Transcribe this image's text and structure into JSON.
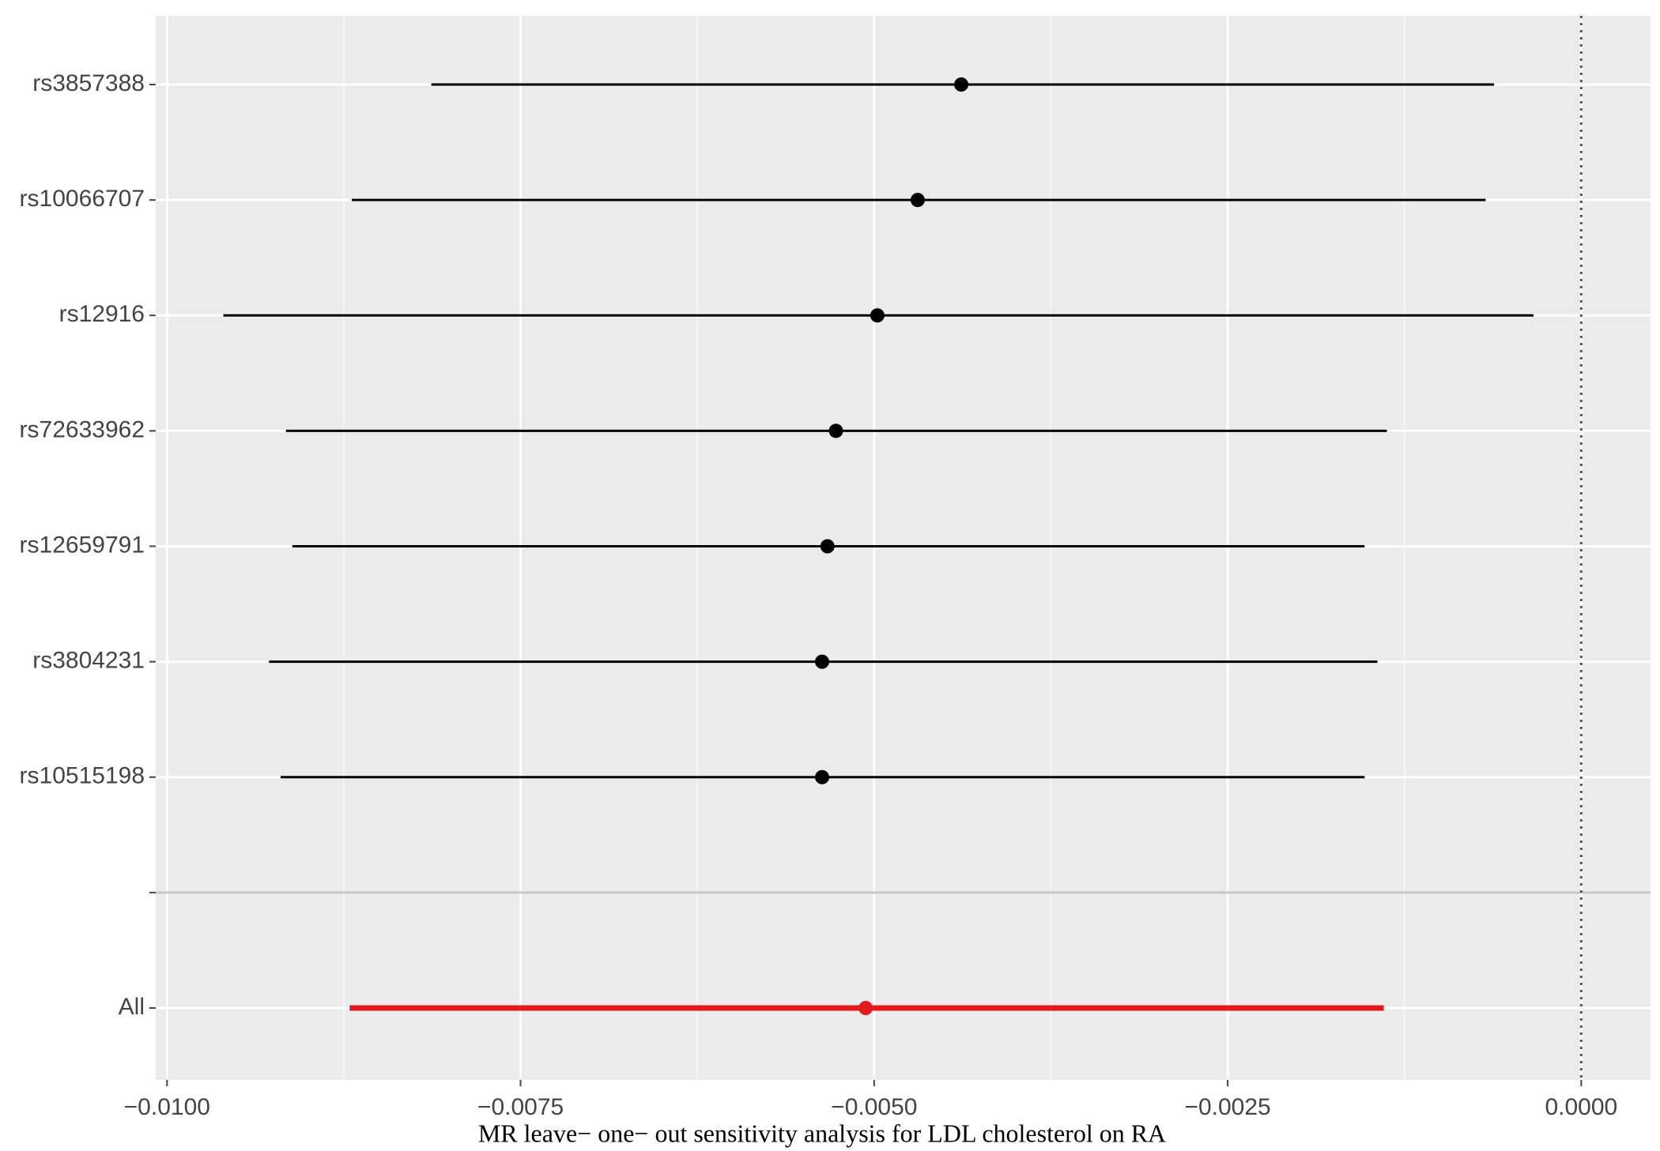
{
  "chart_data": {
    "type": "forest",
    "title": "MR  leave− one− out  sensitivity  analysis  for LDL cholesterol on RA",
    "categories": [
      "rs3857388",
      "rs10066707",
      "rs12916",
      "rs72633962",
      "rs12659791",
      "rs3804231",
      "rs10515198",
      null,
      "All"
    ],
    "values": [
      -0.004384,
      -0.004692,
      -0.004977,
      -0.00527,
      -0.00533,
      -0.005368,
      -0.005368,
      null,
      -0.00506
    ],
    "lower": [
      -0.008131,
      -0.008694,
      -0.009602,
      -0.009159,
      -0.009114,
      -0.009279,
      -0.009197,
      null,
      -0.008709
    ],
    "upper": [
      -0.000616,
      -0.000676,
      -0.000338,
      -0.001374,
      -0.001532,
      -0.001441,
      -0.001532,
      null,
      -0.001396
    ],
    "colors": [
      "#000000",
      "#000000",
      "#000000",
      "#000000",
      "#000000",
      "#000000",
      "#000000",
      null,
      "#e31a1c"
    ],
    "xlim": [
      -0.01008,
      0.00049
    ],
    "xticks": [
      {
        "value": -0.01,
        "label": "−0.0100"
      },
      {
        "value": -0.0075,
        "label": "−0.0075"
      },
      {
        "value": -0.005,
        "label": "−0.0050"
      },
      {
        "value": -0.0025,
        "label": "−0.0025"
      },
      {
        "value": 0,
        "label": "0.0000"
      }
    ],
    "reference_x": 0,
    "grid": true
  }
}
